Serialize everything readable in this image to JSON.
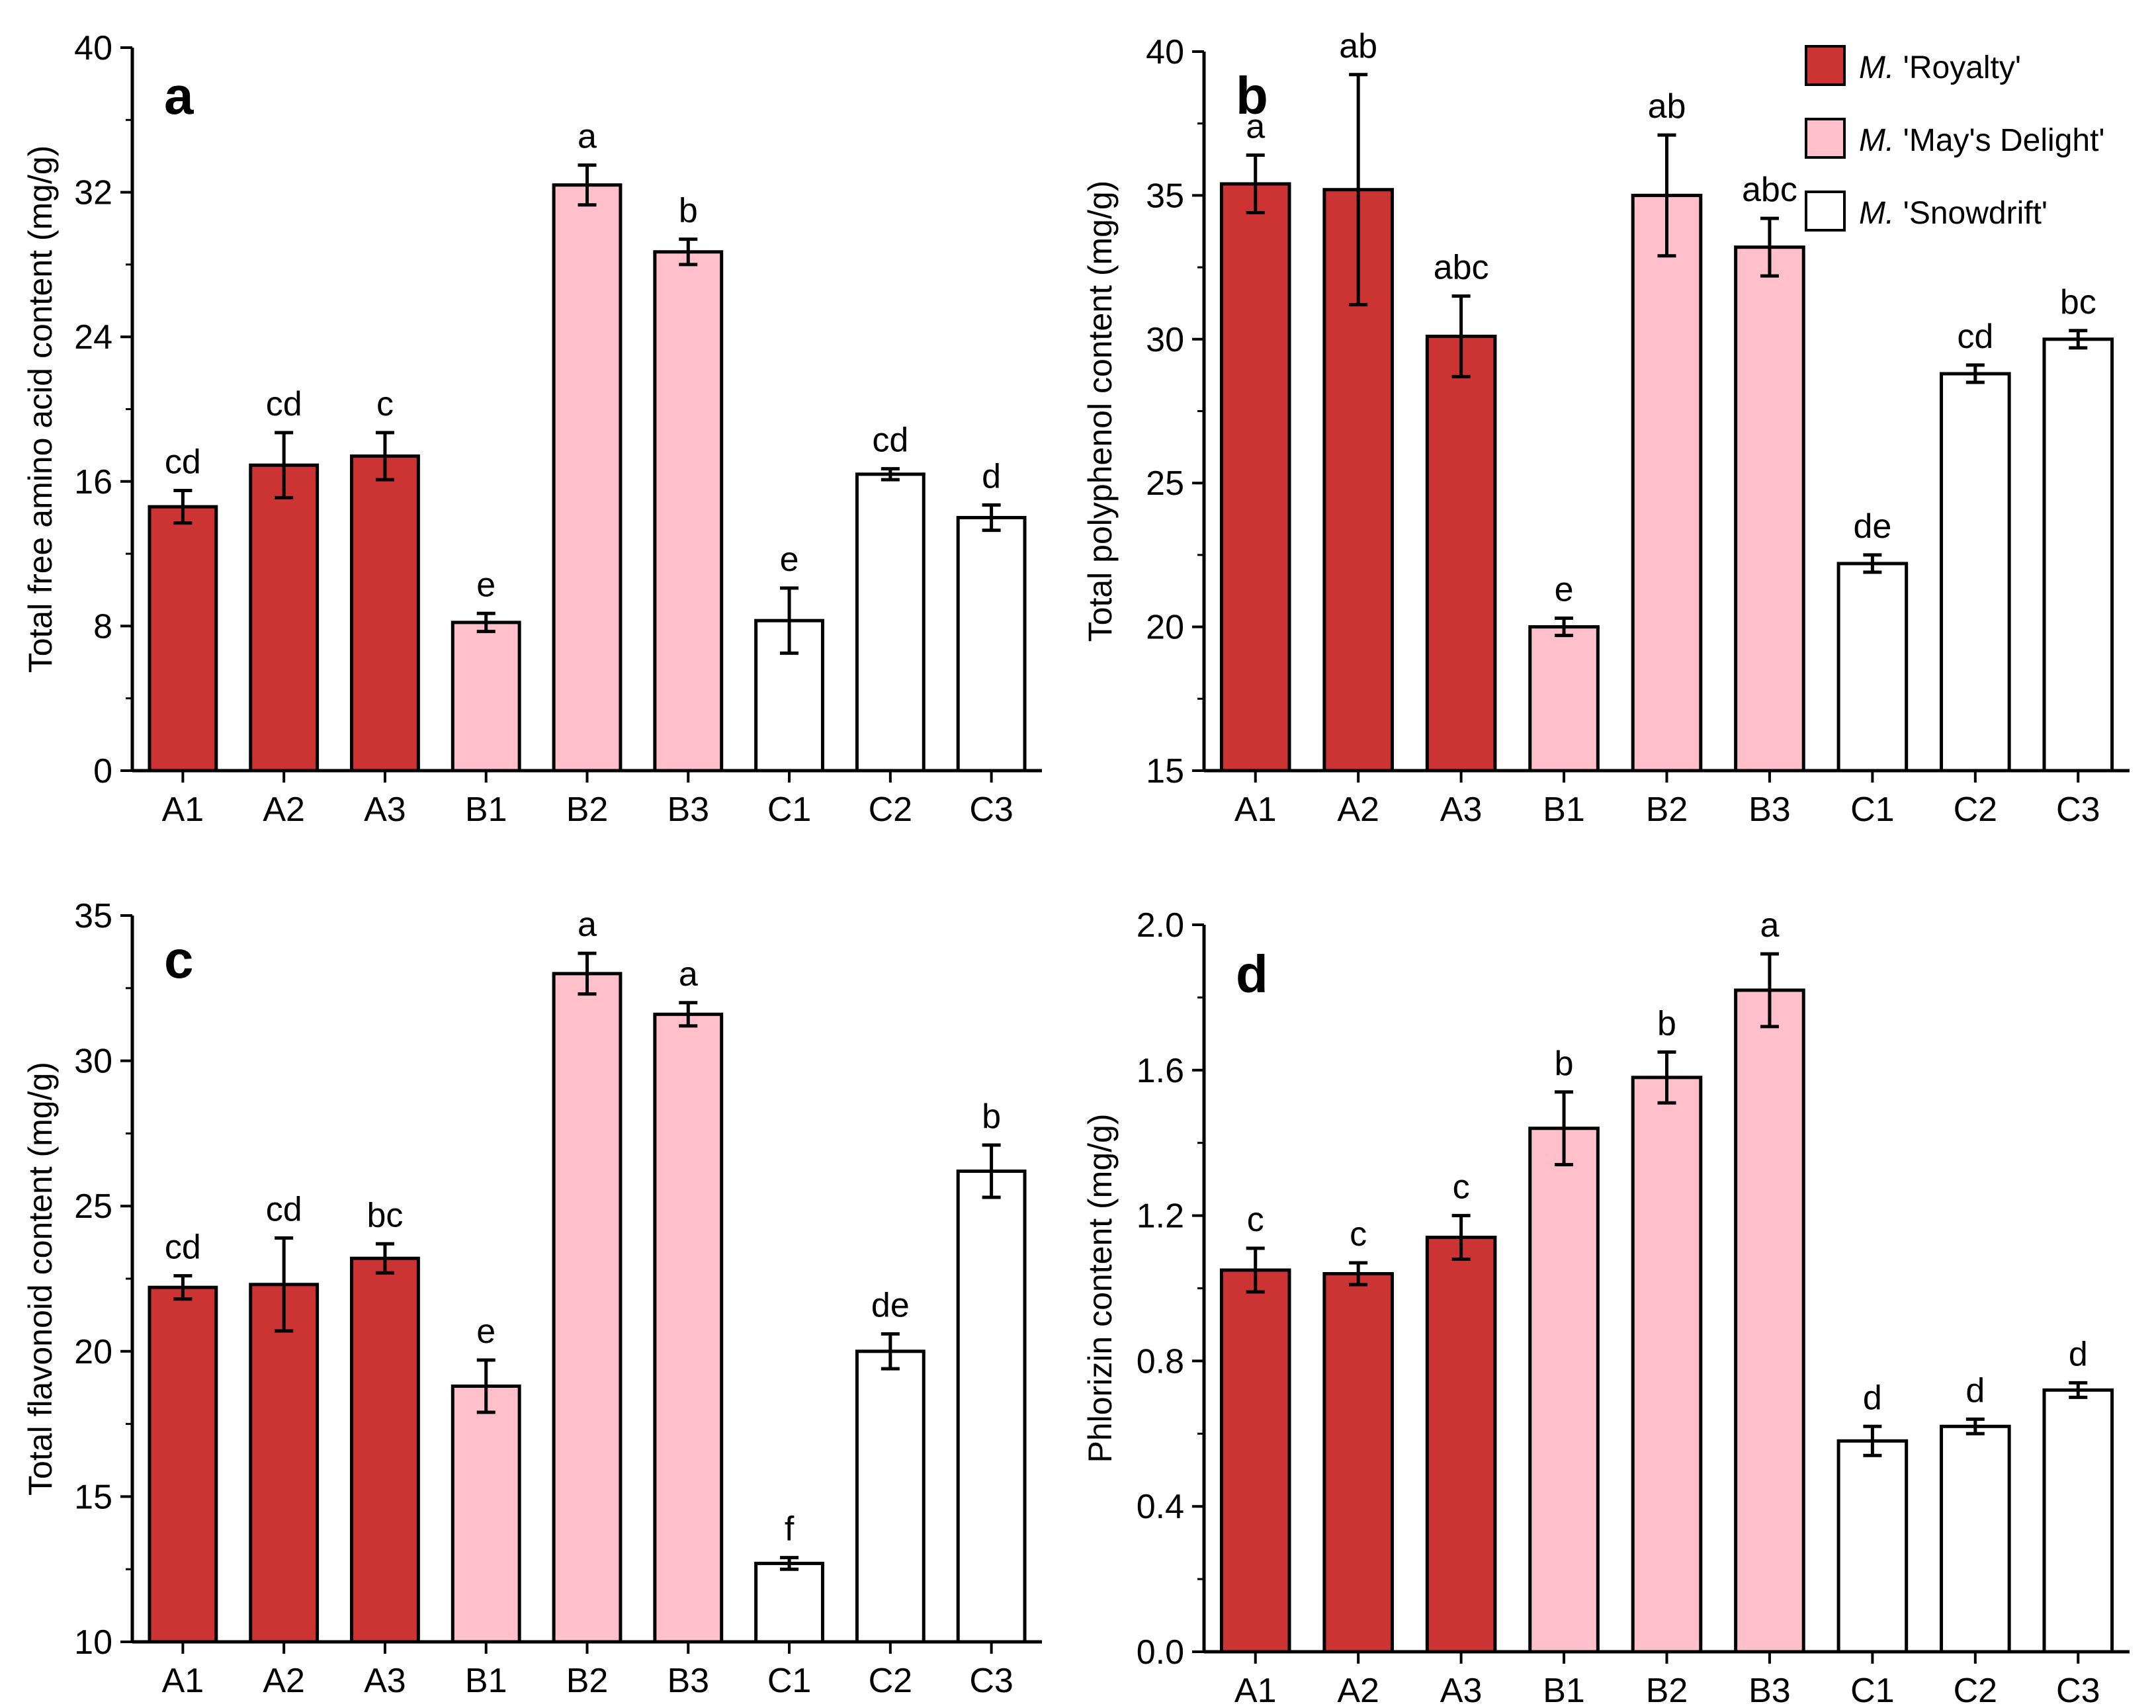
{
  "colors": {
    "royalty": "#cc3333",
    "mays_delight": "#ffc0cb",
    "snowdrift": "#ffffff",
    "stroke": "#000000"
  },
  "legend": {
    "placement": "top-right of panel b",
    "entries": [
      {
        "italic": "M.",
        "text": " 'Royalty'",
        "color_key": "royalty"
      },
      {
        "italic": "M.",
        "text": " 'May's Delight'",
        "color_key": "mays_delight"
      },
      {
        "italic": "M.",
        "text": " 'Snowdrift'",
        "color_key": "snowdrift"
      }
    ]
  },
  "chart_data": [
    {
      "panel": "a",
      "type": "bar",
      "ylabel": "Total free amino acid content (mg/g)",
      "ylim": [
        0,
        40
      ],
      "yticks": [
        0,
        8,
        16,
        24,
        32,
        40
      ],
      "categories": [
        "A1",
        "A2",
        "A3",
        "B1",
        "B2",
        "B3",
        "C1",
        "C2",
        "C3"
      ],
      "color_keys": [
        "royalty",
        "royalty",
        "royalty",
        "mays_delight",
        "mays_delight",
        "mays_delight",
        "snowdrift",
        "snowdrift",
        "snowdrift"
      ],
      "values": [
        14.6,
        16.9,
        17.4,
        8.2,
        32.4,
        28.7,
        8.3,
        16.4,
        14.0
      ],
      "errors": [
        0.9,
        1.8,
        1.3,
        0.5,
        1.1,
        0.7,
        1.8,
        0.3,
        0.7
      ],
      "sig_labels": [
        "cd",
        "cd",
        "c",
        "e",
        "a",
        "b",
        "e",
        "cd",
        "d"
      ]
    },
    {
      "panel": "b",
      "type": "bar",
      "ylabel": "Total polyphenol content (mg/g)",
      "ylim": [
        15,
        40
      ],
      "yticks": [
        15,
        20,
        25,
        30,
        35,
        40
      ],
      "categories": [
        "A1",
        "A2",
        "A3",
        "B1",
        "B2",
        "B3",
        "C1",
        "C2",
        "C3"
      ],
      "color_keys": [
        "royalty",
        "royalty",
        "royalty",
        "mays_delight",
        "mays_delight",
        "mays_delight",
        "snowdrift",
        "snowdrift",
        "snowdrift"
      ],
      "values": [
        35.4,
        35.2,
        30.1,
        20.0,
        35.0,
        33.2,
        22.2,
        28.8,
        30.0
      ],
      "errors": [
        1.0,
        4.0,
        1.4,
        0.3,
        2.1,
        1.0,
        0.3,
        0.3,
        0.3
      ],
      "sig_labels": [
        "a",
        "ab",
        "abc",
        "e",
        "ab",
        "abc",
        "de",
        "cd",
        "bc"
      ]
    },
    {
      "panel": "c",
      "type": "bar",
      "ylabel": "Total flavonoid content (mg/g)",
      "ylim": [
        10,
        35
      ],
      "yticks": [
        10,
        15,
        20,
        25,
        30,
        35
      ],
      "categories": [
        "A1",
        "A2",
        "A3",
        "B1",
        "B2",
        "B3",
        "C1",
        "C2",
        "C3"
      ],
      "color_keys": [
        "royalty",
        "royalty",
        "royalty",
        "mays_delight",
        "mays_delight",
        "mays_delight",
        "snowdrift",
        "snowdrift",
        "snowdrift"
      ],
      "values": [
        22.2,
        22.3,
        23.2,
        18.8,
        33.0,
        31.6,
        12.7,
        20.0,
        26.2
      ],
      "errors": [
        0.4,
        1.6,
        0.5,
        0.9,
        0.7,
        0.4,
        0.2,
        0.6,
        0.9
      ],
      "sig_labels": [
        "cd",
        "cd",
        "bc",
        "e",
        "a",
        "a",
        "f",
        "de",
        "b"
      ]
    },
    {
      "panel": "d",
      "type": "bar",
      "ylabel": "Phlorizin content (mg/g)",
      "ylim": [
        0.0,
        2.0
      ],
      "yticks": [
        "0.0",
        "0.4",
        "0.8",
        "1.2",
        "1.6",
        "2.0"
      ],
      "categories": [
        "A1",
        "A2",
        "A3",
        "B1",
        "B2",
        "B3",
        "C1",
        "C2",
        "C3"
      ],
      "color_keys": [
        "royalty",
        "royalty",
        "royalty",
        "mays_delight",
        "mays_delight",
        "mays_delight",
        "snowdrift",
        "snowdrift",
        "snowdrift"
      ],
      "values": [
        1.05,
        1.04,
        1.14,
        1.44,
        1.58,
        1.82,
        0.58,
        0.62,
        0.72
      ],
      "errors": [
        0.06,
        0.03,
        0.06,
        0.1,
        0.07,
        0.1,
        0.04,
        0.02,
        0.02
      ],
      "sig_labels": [
        "c",
        "c",
        "c",
        "b",
        "b",
        "a",
        "d",
        "d",
        "d"
      ]
    }
  ]
}
